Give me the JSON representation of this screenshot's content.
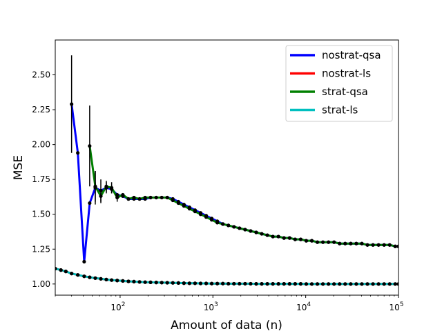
{
  "chart_data": {
    "type": "line",
    "title": "",
    "xlabel": "Amount of data (n)",
    "ylabel": "MSE",
    "xscale": "log",
    "xlim": [
      20,
      100000
    ],
    "ylim": [
      0.92,
      2.75
    ],
    "grid": false,
    "legend_position": "top-right",
    "x_ticks": [
      100,
      1000,
      10000,
      100000
    ],
    "x_tick_labels": [
      {
        "base": "10",
        "exp": "2"
      },
      {
        "base": "10",
        "exp": "3"
      },
      {
        "base": "10",
        "exp": "4"
      },
      {
        "base": "10",
        "exp": "5"
      }
    ],
    "y_ticks": [
      1.0,
      1.25,
      1.5,
      1.75,
      2.0,
      2.25,
      2.5
    ],
    "y_tick_labels": [
      "1.00",
      "1.25",
      "1.50",
      "1.75",
      "2.00",
      "2.25",
      "2.50"
    ],
    "series": [
      {
        "name": "nostrat-qsa",
        "color": "#0000ff",
        "x": [
          30,
          35,
          41,
          47,
          54,
          62,
          71,
          81,
          93,
          107,
          123,
          141,
          162,
          186,
          213,
          245,
          281,
          322,
          370,
          425,
          487,
          559,
          642,
          737,
          846,
          971,
          1115,
          1280,
          1469,
          1686,
          1935,
          2222,
          2551,
          2928,
          3361,
          3859,
          4430,
          5085,
          5838,
          6701,
          7693,
          8831,
          10138,
          11638,
          13359,
          15336,
          17605,
          20210,
          23200,
          26633,
          30573,
          35097,
          40290,
          46251,
          53094,
          60950,
          69968,
          80320,
          92204,
          100000
        ],
        "y": [
          2.29,
          1.94,
          1.16,
          1.58,
          1.69,
          1.67,
          1.69,
          1.68,
          1.64,
          1.63,
          1.61,
          1.61,
          1.61,
          1.61,
          1.62,
          1.62,
          1.62,
          1.62,
          1.61,
          1.59,
          1.57,
          1.55,
          1.53,
          1.51,
          1.49,
          1.47,
          1.45,
          1.43,
          1.42,
          1.41,
          1.4,
          1.39,
          1.38,
          1.37,
          1.36,
          1.35,
          1.34,
          1.34,
          1.33,
          1.33,
          1.32,
          1.32,
          1.31,
          1.31,
          1.3,
          1.3,
          1.3,
          1.3,
          1.29,
          1.29,
          1.29,
          1.29,
          1.29,
          1.28,
          1.28,
          1.28,
          1.28,
          1.28,
          1.27,
          1.27
        ],
        "error": [
          0.35,
          0,
          0,
          0,
          0.12,
          0.08,
          0.04,
          0.03,
          0,
          0,
          0,
          0,
          0,
          0,
          0,
          0,
          0,
          0,
          0,
          0,
          0,
          0,
          0,
          0,
          0,
          0,
          0,
          0,
          0,
          0,
          0,
          0,
          0,
          0,
          0,
          0,
          0,
          0,
          0,
          0,
          0,
          0,
          0,
          0,
          0,
          0,
          0,
          0,
          0,
          0,
          0,
          0,
          0,
          0,
          0,
          0,
          0,
          0,
          0,
          0
        ]
      },
      {
        "name": "nostrat-ls",
        "color": "#ff0000",
        "x": [
          20,
          23,
          26,
          30,
          35,
          41,
          47,
          54,
          62,
          71,
          81,
          93,
          107,
          123,
          141,
          162,
          186,
          213,
          245,
          281,
          322,
          370,
          425,
          487,
          559,
          642,
          737,
          846,
          971,
          1115,
          1280,
          1469,
          1686,
          1935,
          2222,
          2551,
          2928,
          3361,
          3859,
          4430,
          5085,
          5838,
          6701,
          7693,
          8831,
          10138,
          11638,
          13359,
          15336,
          17605,
          20210,
          23200,
          26633,
          30573,
          35097,
          40290,
          46251,
          53094,
          60950,
          69968,
          80320,
          92204,
          100000
        ],
        "y": [
          1.11,
          1.1,
          1.09,
          1.075,
          1.065,
          1.055,
          1.048,
          1.042,
          1.037,
          1.032,
          1.028,
          1.025,
          1.022,
          1.019,
          1.017,
          1.015,
          1.013,
          1.012,
          1.011,
          1.01,
          1.009,
          1.008,
          1.007,
          1.006,
          1.005,
          1.005,
          1.004,
          1.004,
          1.003,
          1.003,
          1.003,
          1.002,
          1.002,
          1.002,
          1.002,
          1.002,
          1.001,
          1.001,
          1.001,
          1.001,
          1.001,
          1.001,
          1.001,
          1.001,
          1.001,
          1.0,
          1.0,
          1.0,
          1.0,
          1.0,
          1.0,
          1.0,
          1.0,
          1.0,
          1.0,
          1.0,
          1.0,
          1.0,
          1.0,
          1.0,
          1.0,
          1.0,
          1.0
        ]
      },
      {
        "name": "strat-qsa",
        "color": "#008000",
        "x": [
          47,
          54,
          62,
          71,
          81,
          93,
          107,
          123,
          141,
          162,
          186,
          213,
          245,
          281,
          322,
          370,
          425,
          487,
          559,
          642,
          737,
          846,
          971,
          1115,
          1280,
          1469,
          1686,
          1935,
          2222,
          2551,
          2928,
          3361,
          3859,
          4430,
          5085,
          5838,
          6701,
          7693,
          8831,
          10138,
          11638,
          13359,
          15336,
          17605,
          20210,
          23200,
          26633,
          30573,
          35097,
          40290,
          46251,
          53094,
          60950,
          69968,
          80320,
          92204,
          100000
        ],
        "y": [
          1.99,
          1.7,
          1.63,
          1.7,
          1.69,
          1.62,
          1.64,
          1.61,
          1.62,
          1.61,
          1.62,
          1.62,
          1.62,
          1.62,
          1.62,
          1.6,
          1.58,
          1.56,
          1.54,
          1.52,
          1.5,
          1.48,
          1.46,
          1.44,
          1.43,
          1.42,
          1.41,
          1.4,
          1.39,
          1.38,
          1.37,
          1.36,
          1.35,
          1.34,
          1.34,
          1.33,
          1.33,
          1.32,
          1.32,
          1.31,
          1.31,
          1.3,
          1.3,
          1.3,
          1.3,
          1.29,
          1.29,
          1.29,
          1.29,
          1.29,
          1.28,
          1.28,
          1.28,
          1.28,
          1.28,
          1.27,
          1.27
        ],
        "error": [
          0.29,
          0.11,
          0.05,
          0.04,
          0.04,
          0.03,
          0,
          0,
          0,
          0,
          0,
          0,
          0,
          0,
          0,
          0,
          0,
          0,
          0,
          0,
          0,
          0,
          0,
          0,
          0,
          0,
          0,
          0,
          0,
          0,
          0,
          0,
          0,
          0,
          0,
          0,
          0,
          0,
          0,
          0,
          0,
          0,
          0,
          0,
          0,
          0,
          0,
          0,
          0,
          0,
          0,
          0,
          0,
          0,
          0,
          0,
          0
        ]
      },
      {
        "name": "strat-ls",
        "color": "#00bfbf",
        "x": [
          20,
          23,
          26,
          30,
          35,
          41,
          47,
          54,
          62,
          71,
          81,
          93,
          107,
          123,
          141,
          162,
          186,
          213,
          245,
          281,
          322,
          370,
          425,
          487,
          559,
          642,
          737,
          846,
          971,
          1115,
          1280,
          1469,
          1686,
          1935,
          2222,
          2551,
          2928,
          3361,
          3859,
          4430,
          5085,
          5838,
          6701,
          7693,
          8831,
          10138,
          11638,
          13359,
          15336,
          17605,
          20210,
          23200,
          26633,
          30573,
          35097,
          40290,
          46251,
          53094,
          60950,
          69968,
          80320,
          92204,
          100000
        ],
        "y": [
          1.11,
          1.1,
          1.09,
          1.075,
          1.065,
          1.055,
          1.048,
          1.042,
          1.037,
          1.032,
          1.028,
          1.025,
          1.022,
          1.019,
          1.017,
          1.015,
          1.013,
          1.012,
          1.011,
          1.01,
          1.009,
          1.008,
          1.007,
          1.006,
          1.005,
          1.005,
          1.004,
          1.004,
          1.003,
          1.003,
          1.003,
          1.002,
          1.002,
          1.002,
          1.002,
          1.002,
          1.001,
          1.001,
          1.001,
          1.001,
          1.001,
          1.001,
          1.001,
          1.001,
          1.001,
          1.0,
          1.0,
          1.0,
          1.0,
          1.0,
          1.0,
          1.0,
          1.0,
          1.0,
          1.0,
          1.0,
          1.0,
          1.0,
          1.0,
          1.0,
          1.0,
          1.0,
          1.0
        ]
      }
    ]
  }
}
